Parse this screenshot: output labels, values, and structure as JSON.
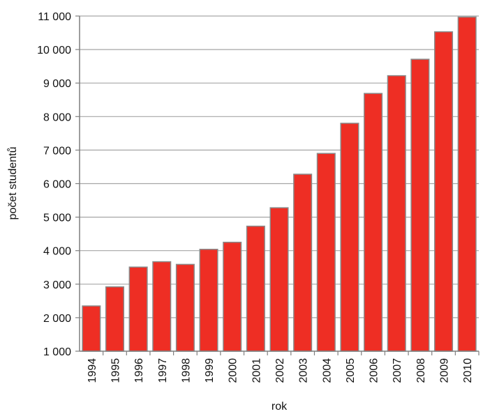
{
  "chart_data": {
    "type": "bar",
    "title": "",
    "xlabel": "rok",
    "ylabel": "počet studentů",
    "categories": [
      "1994",
      "1995",
      "1996",
      "1997",
      "1998",
      "1999",
      "2000",
      "2001",
      "2002",
      "2003",
      "2004",
      "2005",
      "2006",
      "2007",
      "2008",
      "2009",
      "2010"
    ],
    "values": [
      2350,
      2920,
      3510,
      3670,
      3590,
      4040,
      4250,
      4730,
      5280,
      6280,
      6900,
      7800,
      8690,
      9220,
      9710,
      10530,
      10970
    ],
    "ylim": [
      1000,
      11000
    ],
    "yticks": [
      1000,
      2000,
      3000,
      4000,
      5000,
      6000,
      7000,
      8000,
      9000,
      10000,
      11000
    ],
    "ytick_labels": [
      "1 000",
      "2 000",
      "3 000",
      "4 000",
      "5 000",
      "6 000",
      "7 000",
      "8 000",
      "9 000",
      "10 000",
      "11 000"
    ],
    "grid": true,
    "legend": "none",
    "colors": {
      "bar": "#ee2e24",
      "bar_edge": "#8a8a8a",
      "grid": "#a6a6a6",
      "axis": "#7f7f7f"
    }
  }
}
